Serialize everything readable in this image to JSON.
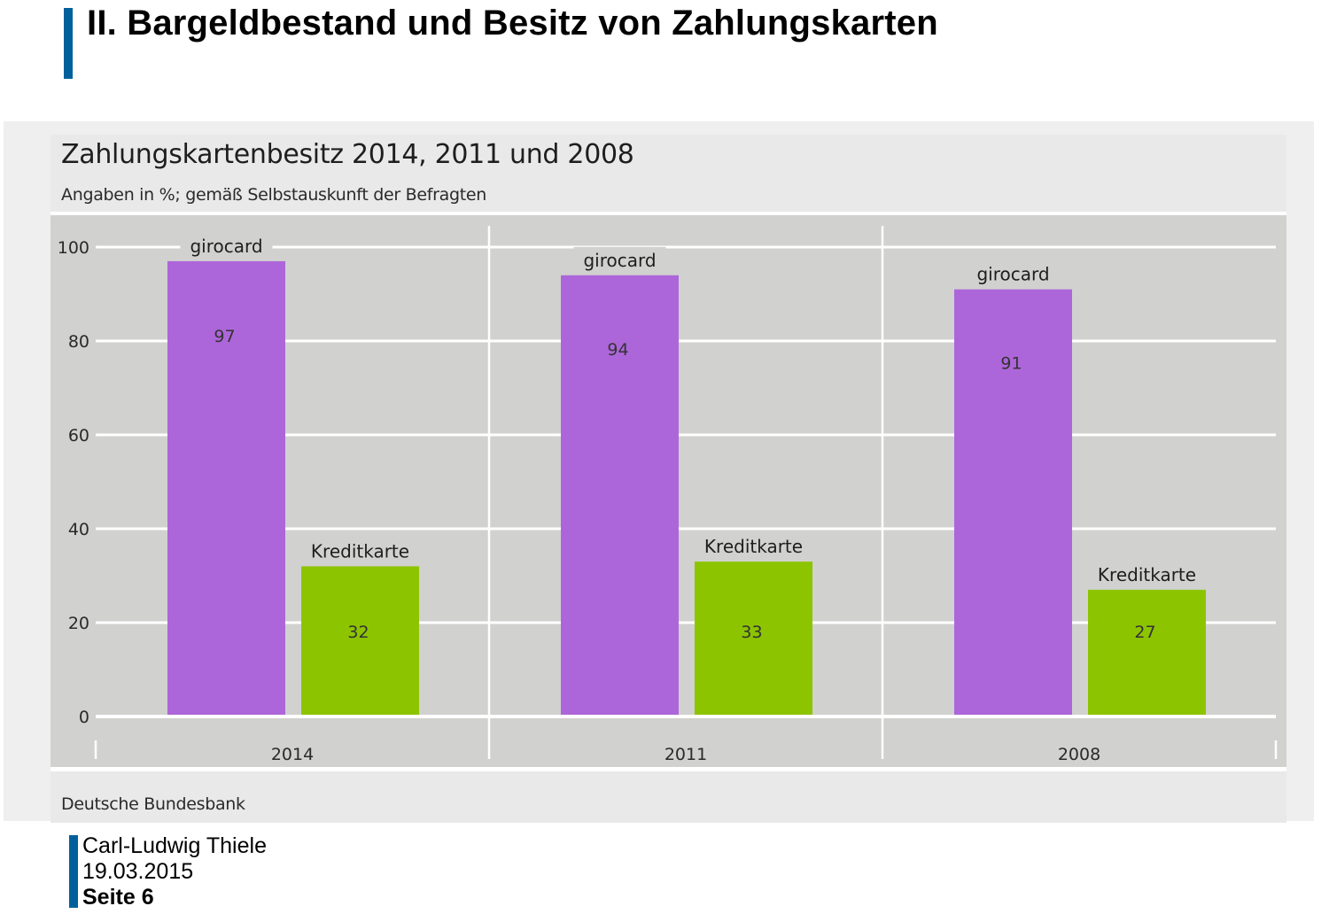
{
  "slide": {
    "title": "II. Bargeldbestand und Besitz von Zahlungskarten",
    "accent_color": "#00609c"
  },
  "footer": {
    "author": "Carl-Ludwig Thiele",
    "date": "19.03.2015",
    "page": "Seite 6"
  },
  "chart_data": {
    "type": "bar",
    "title": "Zahlungskartenbesitz 2014, 2011 und 2008",
    "subtitle": "Angaben in %; gemäß Selbstauskunft der Befragten",
    "source": "Deutsche Bundesbank",
    "xlabel": "",
    "ylabel": "",
    "categories": [
      "2014",
      "2011",
      "2008"
    ],
    "series": [
      {
        "name": "girocard",
        "color": "#ad66d9",
        "values": [
          97,
          94,
          91
        ]
      },
      {
        "name": "Kreditkarte",
        "color": "#8dc400",
        "values": [
          32,
          33,
          27
        ]
      }
    ],
    "ylim": [
      0,
      100
    ],
    "yticks": [
      0,
      20,
      40,
      60,
      80,
      100
    ],
    "grid": true,
    "legend": "inline-bar-labels",
    "data_labels": true
  }
}
